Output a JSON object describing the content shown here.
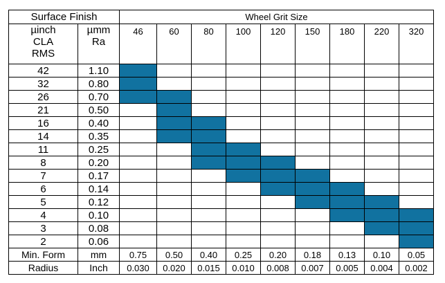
{
  "header": {
    "surface_finish": "Surface Finish",
    "wheel_grit_size": "Wheel Grit Size",
    "units": [
      {
        "lines": [
          "µinch",
          "CLA",
          "RMS"
        ]
      },
      {
        "lines": [
          "µmm",
          "Ra"
        ]
      }
    ]
  },
  "grits": [
    "46",
    "60",
    "80",
    "100",
    "120",
    "150",
    "180",
    "220",
    "320"
  ],
  "fill_color": "#1172a0",
  "rows": [
    {
      "uinch": "42",
      "umm": "1.10",
      "grit_fill": [
        true,
        false,
        false,
        false,
        false,
        false,
        false,
        false,
        false
      ]
    },
    {
      "uinch": "32",
      "umm": "0.80",
      "grit_fill": [
        true,
        false,
        false,
        false,
        false,
        false,
        false,
        false,
        false
      ]
    },
    {
      "uinch": "26",
      "umm": "0.70",
      "grit_fill": [
        true,
        true,
        false,
        false,
        false,
        false,
        false,
        false,
        false
      ]
    },
    {
      "uinch": "21",
      "umm": "0.50",
      "grit_fill": [
        false,
        true,
        false,
        false,
        false,
        false,
        false,
        false,
        false
      ]
    },
    {
      "uinch": "16",
      "umm": "0.40",
      "grit_fill": [
        false,
        true,
        true,
        false,
        false,
        false,
        false,
        false,
        false
      ]
    },
    {
      "uinch": "14",
      "umm": "0.35",
      "grit_fill": [
        false,
        true,
        true,
        false,
        false,
        false,
        false,
        false,
        false
      ]
    },
    {
      "uinch": "11",
      "umm": "0.25",
      "grit_fill": [
        false,
        false,
        true,
        true,
        false,
        false,
        false,
        false,
        false
      ]
    },
    {
      "uinch": "8",
      "umm": "0.20",
      "grit_fill": [
        false,
        false,
        true,
        true,
        true,
        false,
        false,
        false,
        false
      ]
    },
    {
      "uinch": "7",
      "umm": "0.17",
      "grit_fill": [
        false,
        false,
        false,
        true,
        true,
        true,
        false,
        false,
        false
      ]
    },
    {
      "uinch": "6",
      "umm": "0.14",
      "grit_fill": [
        false,
        false,
        false,
        false,
        true,
        true,
        true,
        false,
        false
      ]
    },
    {
      "uinch": "5",
      "umm": "0.12",
      "grit_fill": [
        false,
        false,
        false,
        false,
        false,
        true,
        true,
        true,
        false
      ]
    },
    {
      "uinch": "4",
      "umm": "0.10",
      "grit_fill": [
        false,
        false,
        false,
        false,
        false,
        false,
        true,
        true,
        true
      ]
    },
    {
      "uinch": "3",
      "umm": "0.08",
      "grit_fill": [
        false,
        false,
        false,
        false,
        false,
        false,
        false,
        true,
        true
      ]
    },
    {
      "uinch": "2",
      "umm": "0.06",
      "grit_fill": [
        false,
        false,
        false,
        false,
        false,
        false,
        false,
        false,
        true
      ]
    }
  ],
  "footer": [
    {
      "label": "Min. Form",
      "unit": "mm",
      "values": [
        "0.75",
        "0.50",
        "0.40",
        "0.25",
        "0.20",
        "0.18",
        "0.13",
        "0.10",
        "0.05"
      ]
    },
    {
      "label": "Radius",
      "unit": "Inch",
      "values": [
        "0.030",
        "0.020",
        "0.015",
        "0.010",
        "0.008",
        "0.007",
        "0.005",
        "0.004",
        "0.002"
      ]
    }
  ]
}
